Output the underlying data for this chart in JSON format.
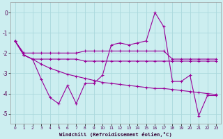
{
  "xlabel": "Windchill (Refroidissement éolien,°C)",
  "background_color": "#cceef0",
  "grid_color": "#aad8dc",
  "line_color": "#990099",
  "x": [
    0,
    1,
    2,
    3,
    4,
    5,
    6,
    7,
    8,
    9,
    10,
    11,
    12,
    13,
    14,
    15,
    16,
    17,
    18,
    19,
    20,
    21,
    22,
    23
  ],
  "line1": [
    -1.4,
    -2.0,
    -2.0,
    -2.0,
    -2.0,
    -2.0,
    -2.0,
    -2.0,
    -1.9,
    -1.9,
    -1.9,
    -1.9,
    -1.9,
    -1.9,
    -1.9,
    -1.9,
    -1.9,
    -1.9,
    -2.3,
    -2.3,
    -2.3,
    -2.3,
    -2.3,
    -2.3
  ],
  "line2": [
    -1.4,
    -2.1,
    -2.3,
    -2.3,
    -2.3,
    -2.3,
    -2.3,
    -2.3,
    -2.4,
    -2.4,
    -2.4,
    -2.4,
    -2.4,
    -2.4,
    -2.4,
    -2.4,
    -2.4,
    -2.4,
    -2.4,
    -2.4,
    -2.4,
    -2.4,
    -2.4,
    -2.4
  ],
  "line3": [
    -1.4,
    -2.1,
    -2.3,
    -2.55,
    -2.75,
    -2.9,
    -3.05,
    -3.15,
    -3.25,
    -3.35,
    -3.45,
    -3.5,
    -3.55,
    -3.6,
    -3.65,
    -3.7,
    -3.75,
    -3.75,
    -3.8,
    -3.85,
    -3.9,
    -3.95,
    -4.0,
    -4.05
  ],
  "line4": [
    -1.4,
    -2.1,
    -2.3,
    -3.3,
    -4.2,
    -4.5,
    -3.6,
    -4.5,
    -3.5,
    -3.5,
    -3.1,
    -1.6,
    -1.5,
    -1.6,
    -1.5,
    -1.4,
    0.0,
    -0.7,
    -3.4,
    -3.4,
    -3.1,
    -5.1,
    -4.1,
    -4.1
  ],
  "ylim": [
    -5.5,
    0.5
  ],
  "xlim": [
    -0.5,
    23.5
  ],
  "yticks": [
    0,
    -1,
    -2,
    -3,
    -4,
    -5
  ],
  "figsize": [
    3.2,
    2.0
  ],
  "dpi": 100
}
